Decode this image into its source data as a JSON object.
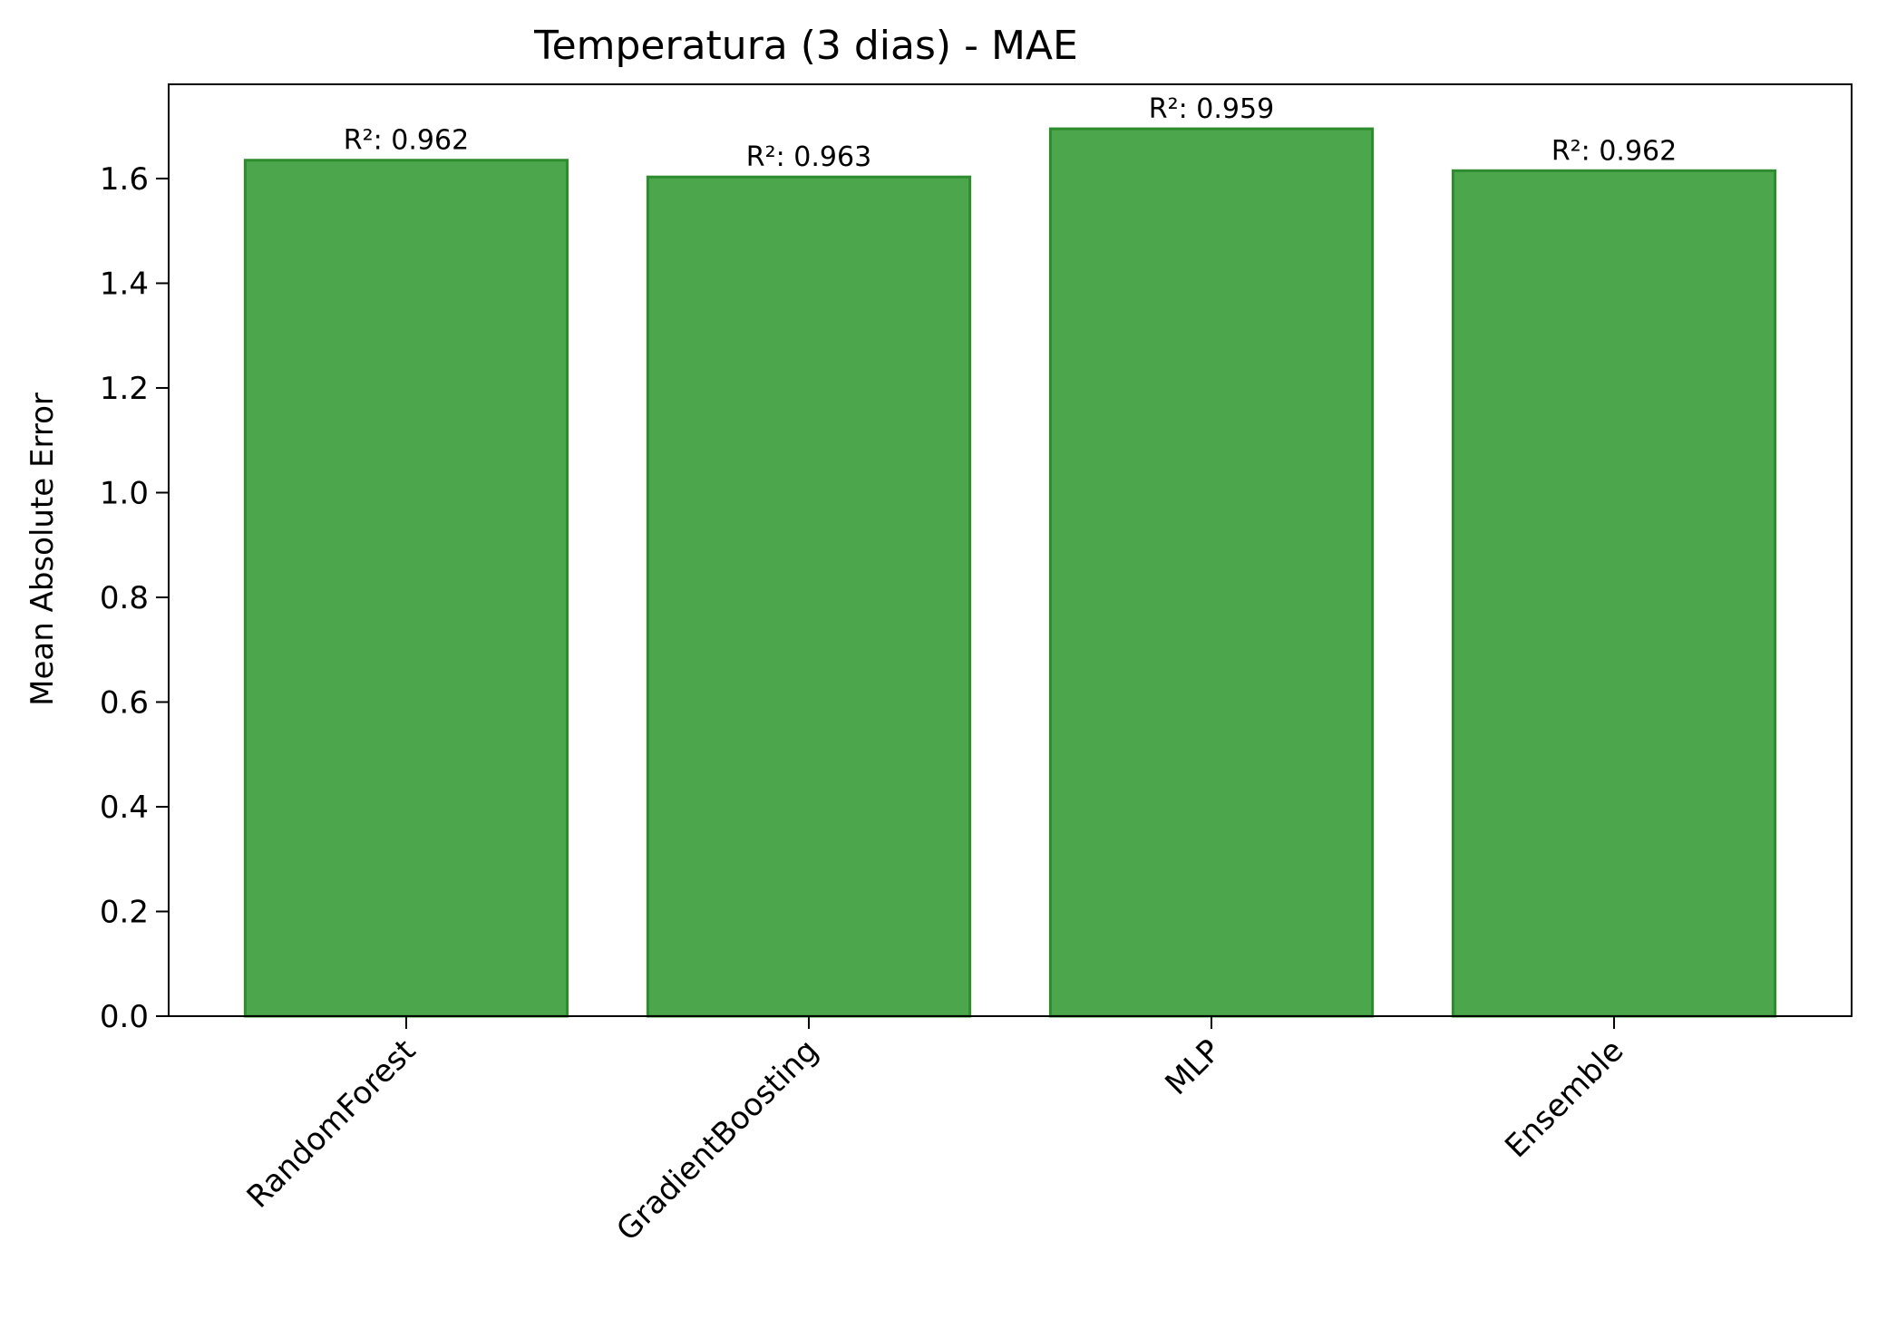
{
  "chart_data": {
    "type": "bar",
    "title": "Temperatura (3 dias) - MAE",
    "xlabel": "",
    "ylabel": "Mean Absolute Error",
    "categories": [
      "RandomForest",
      "GradientBoosting",
      "MLP",
      "Ensemble"
    ],
    "values": [
      1.635,
      1.603,
      1.695,
      1.615
    ],
    "bar_labels": [
      "R²: 0.962",
      "R²: 0.963",
      "R²: 0.959",
      "R²: 0.962"
    ],
    "ylim": [
      0,
      1.78
    ],
    "yticks": [
      0.0,
      0.2,
      0.4,
      0.6,
      0.8,
      1.0,
      1.2,
      1.4,
      1.6
    ],
    "ytick_labels": [
      "0.0",
      "0.2",
      "0.4",
      "0.6",
      "0.8",
      "1.0",
      "1.2",
      "1.4",
      "1.6"
    ],
    "grid": false,
    "bar_color": "#4ca64c",
    "bar_edge_color": "#2e8b2e",
    "xtick_rotation": 45
  }
}
